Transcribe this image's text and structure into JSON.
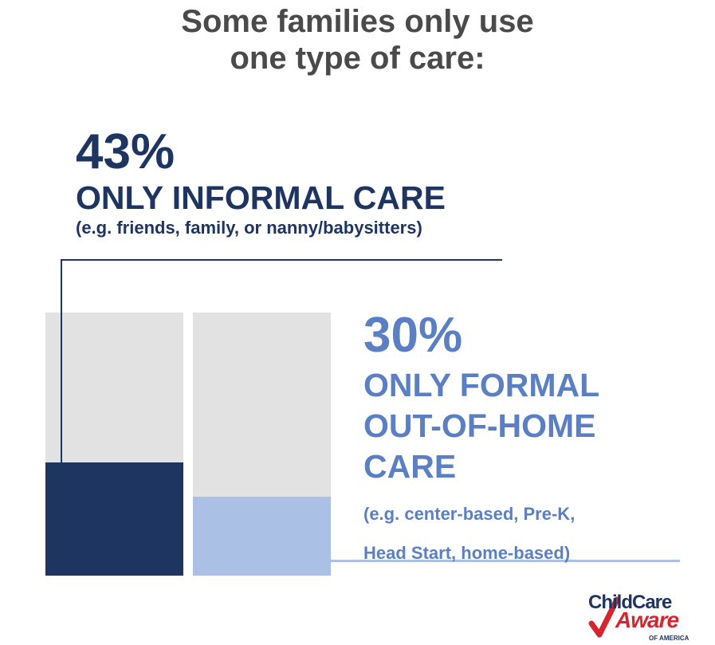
{
  "title_lines": [
    "Some families only use",
    "one type of care:"
  ],
  "chart_data": {
    "type": "bar",
    "categories": [
      "Only informal care",
      "Only formal out-of-home care"
    ],
    "values": [
      43,
      30
    ],
    "unit": "%",
    "ylim": [
      0,
      100
    ],
    "grid": false,
    "colors": {
      "track": "#e2e2e2",
      "informal": "#1e3461",
      "formal": "#aac0e5"
    }
  },
  "stats": {
    "informal": {
      "value_label": "43%",
      "label_lines": [
        "ONLY INFORMAL CARE"
      ],
      "note_lines": [
        "(e.g. friends, family, or nanny/babysitters)"
      ],
      "color": "#1e3461"
    },
    "formal": {
      "value_label": "30%",
      "label_lines": [
        "ONLY FORMAL",
        "OUT-OF-HOME",
        "CARE"
      ],
      "note_lines": [
        "(e.g. center-based, Pre-K,",
        "Head Start, home-based)"
      ],
      "color": "#5b7fc3"
    }
  },
  "logo": {
    "line1": "ChildCare",
    "line2": "Aware",
    "line3": "OF AMERICA",
    "check_icon": "check-mark-icon",
    "colors": {
      "navy": "#1e3461",
      "red": "#d6252e"
    }
  }
}
